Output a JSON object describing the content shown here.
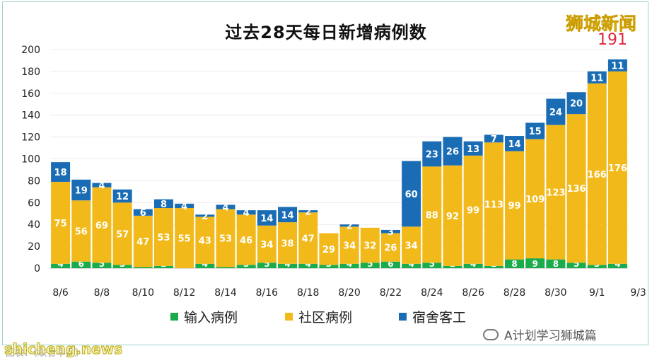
{
  "brand_text": "狮城新闻",
  "total_label": "191",
  "source_text": "图表：《联合早报》",
  "watermark_text": "shicheng.news",
  "wechat_account": "A计划学习狮城篇",
  "colors": {
    "imported": "#1aab4b",
    "community": "#f2b91a",
    "dormitory": "#1a6db5"
  },
  "chart_data": {
    "type": "bar",
    "stacked": true,
    "title": "过去28天每日新增病例数",
    "ylim": [
      0,
      200
    ],
    "yticks": [
      "0",
      "20",
      "40",
      "60",
      "80",
      "100",
      "120",
      "140",
      "160",
      "180",
      "200"
    ],
    "x_tick_labels": [
      "8/6",
      "8/8",
      "8/10",
      "8/12",
      "8/14",
      "8/16",
      "8/18",
      "8/20",
      "8/22",
      "8/24",
      "8/26",
      "8/28",
      "8/30",
      "9/1",
      "9/3"
    ],
    "legend": [
      "输入病例",
      "社区病例",
      "宿舍客工"
    ],
    "grid": true,
    "series": [
      {
        "name": "输入病例",
        "values": [
          4,
          6,
          5,
          3,
          1,
          2,
          0,
          4,
          1,
          3,
          5,
          4,
          4,
          3,
          4,
          5,
          6,
          4,
          5,
          2,
          4,
          2,
          8,
          9,
          8,
          5,
          3,
          4
        ]
      },
      {
        "name": "社区病例",
        "values": [
          75,
          56,
          69,
          57,
          47,
          53,
          55,
          43,
          53,
          46,
          34,
          38,
          47,
          29,
          34,
          32,
          26,
          34,
          88,
          92,
          99,
          113,
          99,
          109,
          123,
          136,
          166,
          176
        ]
      },
      {
        "name": "宿舍客工",
        "values": [
          18,
          19,
          4,
          12,
          6,
          8,
          4,
          2,
          4,
          4,
          14,
          14,
          2,
          0,
          2,
          0,
          3,
          60,
          23,
          26,
          13,
          7,
          14,
          15,
          24,
          20,
          11,
          11
        ]
      }
    ]
  }
}
